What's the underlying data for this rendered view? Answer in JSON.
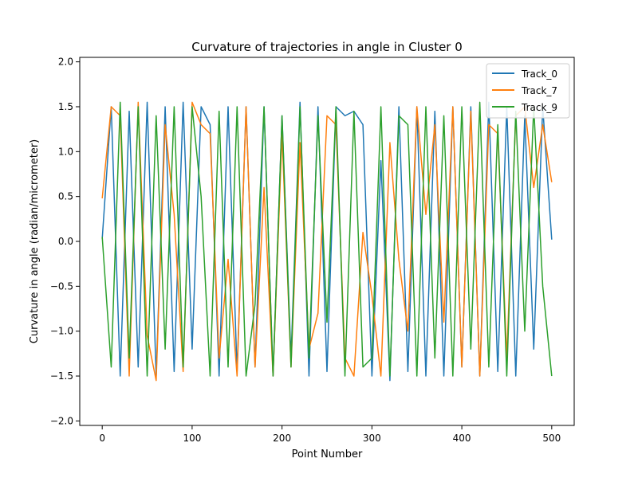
{
  "chart_data": {
    "type": "line",
    "title": "Curvature of trajectories in angle in Cluster 0",
    "xlabel": "Point Number",
    "ylabel": "Curvature in angle (radian/micrometer)",
    "xlim": [
      -25,
      525
    ],
    "ylim": [
      -2.05,
      2.05
    ],
    "xticks": [
      0,
      100,
      200,
      300,
      400,
      500
    ],
    "yticks": [
      -2.0,
      -1.5,
      -1.0,
      -0.5,
      0.0,
      0.5,
      1.0,
      1.5,
      2.0
    ],
    "grid": false,
    "legend_position": "top-right",
    "x_step": 10,
    "series": [
      {
        "name": "Track_0",
        "color": "#1f77b4",
        "values": [
          0.03,
          1.5,
          -1.5,
          1.45,
          -1.4,
          1.55,
          -1.5,
          1.5,
          -1.45,
          1.55,
          -1.2,
          1.5,
          1.3,
          -1.5,
          1.5,
          -1.45,
          1.5,
          -1.4,
          1.5,
          -1.5,
          1.4,
          -1.3,
          1.55,
          -1.5,
          1.5,
          -1.45,
          1.5,
          1.4,
          1.45,
          1.3,
          -1.5,
          0.9,
          -1.55,
          1.5,
          -1.45,
          1.5,
          -1.5,
          1.45,
          -1.5,
          1.5,
          -1.4,
          1.5,
          -1.5,
          1.55,
          -1.45,
          1.5,
          -1.5,
          1.4,
          -1.2,
          1.5,
          0.02
        ]
      },
      {
        "name": "Track_7",
        "color": "#ff7f0e",
        "values": [
          0.48,
          1.5,
          1.4,
          -1.5,
          1.55,
          -1.05,
          -1.55,
          1.3,
          0.3,
          -1.45,
          1.55,
          1.3,
          1.2,
          -1.3,
          -0.2,
          -1.5,
          1.5,
          -1.4,
          0.6,
          -1.5,
          1.2,
          -1.4,
          1.1,
          -1.2,
          -0.8,
          1.4,
          1.3,
          -1.3,
          -1.5,
          0.1,
          -0.6,
          -1.5,
          1.1,
          -0.2,
          -1.0,
          1.5,
          0.3,
          1.3,
          -0.9,
          1.5,
          -1.4,
          1.45,
          -1.5,
          1.3,
          1.2,
          -1.3,
          1.4,
          1.5,
          0.6,
          1.3,
          0.66
        ]
      },
      {
        "name": "Track_9",
        "color": "#2ca02c",
        "values": [
          0.05,
          -1.4,
          1.55,
          -1.3,
          1.5,
          -1.5,
          1.4,
          -1.2,
          1.5,
          -1.4,
          1.5,
          0.5,
          -1.5,
          1.45,
          -1.4,
          1.5,
          -1.5,
          -0.7,
          1.5,
          -1.5,
          1.4,
          -1.4,
          1.5,
          -1.3,
          1.4,
          -0.9,
          1.5,
          -1.5,
          1.45,
          -1.4,
          -1.3,
          1.5,
          -1.5,
          1.4,
          1.3,
          -1.5,
          1.5,
          -1.3,
          1.4,
          -1.5,
          1.5,
          -1.2,
          1.55,
          -1.4,
          1.3,
          -1.5,
          1.45,
          -1.0,
          1.5,
          -0.5,
          -1.5
        ]
      }
    ]
  }
}
